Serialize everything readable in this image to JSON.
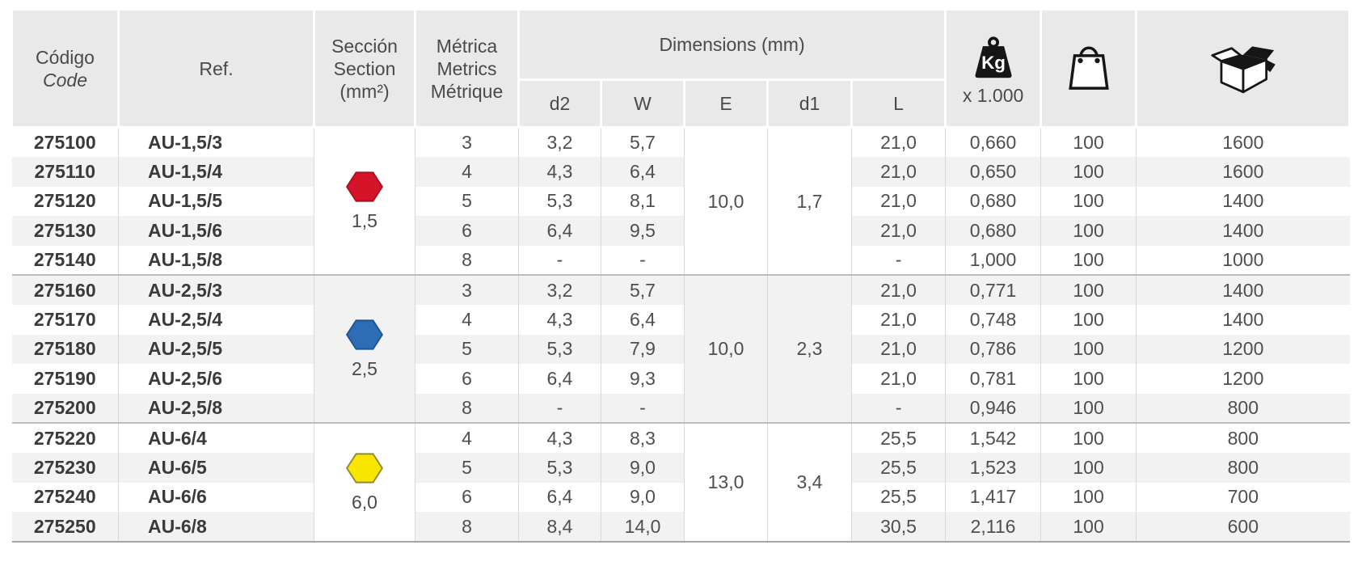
{
  "table": {
    "headers": {
      "codigo_line1": "Código",
      "codigo_line2": "Code",
      "ref": "Ref.",
      "seccion_line1": "Sección",
      "seccion_line2": "Section",
      "seccion_line3": "(mm²)",
      "metrica_line1": "Métrica",
      "metrica_line2": "Metrics",
      "metrica_line3": "Métrique",
      "dimensions": "Dimensions (mm)",
      "dim_d2": "d2",
      "dim_w": "W",
      "dim_e": "E",
      "dim_d1": "d1",
      "dim_l": "L",
      "kg_icon_label": "Kg",
      "kg_multiplier": "x 1.000",
      "icons": {
        "weight": "weight-kg-icon",
        "bag": "shopping-bag-icon",
        "box": "packaging-box-icon"
      }
    },
    "colors": {
      "header_bg": "#e9e9e9",
      "stripe_bg": "#f2f2f2",
      "divider": "#d9d9d9",
      "group_separator": "#bcbcbc",
      "red_hex": "#d5142a",
      "blue_hex": "#2c6db6",
      "yellow_hex": "#f8e500"
    },
    "groups": [
      {
        "section": "1,5",
        "hex_fill": "#d5142a",
        "hex_stroke": "#a81022",
        "E": "10,0",
        "d1": "1,7",
        "rows": [
          {
            "code": "275100",
            "ref": "AU-1,5/3",
            "metric": "3",
            "d2": "3,2",
            "W": "5,7",
            "L": "21,0",
            "kg": "0,660",
            "bag": "100",
            "box": "1600"
          },
          {
            "code": "275110",
            "ref": "AU-1,5/4",
            "metric": "4",
            "d2": "4,3",
            "W": "6,4",
            "L": "21,0",
            "kg": "0,650",
            "bag": "100",
            "box": "1600"
          },
          {
            "code": "275120",
            "ref": "AU-1,5/5",
            "metric": "5",
            "d2": "5,3",
            "W": "8,1",
            "L": "21,0",
            "kg": "0,680",
            "bag": "100",
            "box": "1400"
          },
          {
            "code": "275130",
            "ref": "AU-1,5/6",
            "metric": "6",
            "d2": "6,4",
            "W": "9,5",
            "L": "21,0",
            "kg": "0,680",
            "bag": "100",
            "box": "1400"
          },
          {
            "code": "275140",
            "ref": "AU-1,5/8",
            "metric": "8",
            "d2": "-",
            "W": "-",
            "L": "-",
            "kg": "1,000",
            "bag": "100",
            "box": "1000"
          }
        ]
      },
      {
        "section": "2,5",
        "hex_fill": "#2c6db6",
        "hex_stroke": "#1f5492",
        "E": "10,0",
        "d1": "2,3",
        "rows": [
          {
            "code": "275160",
            "ref": "AU-2,5/3",
            "metric": "3",
            "d2": "3,2",
            "W": "5,7",
            "L": "21,0",
            "kg": "0,771",
            "bag": "100",
            "box": "1400"
          },
          {
            "code": "275170",
            "ref": "AU-2,5/4",
            "metric": "4",
            "d2": "4,3",
            "W": "6,4",
            "L": "21,0",
            "kg": "0,748",
            "bag": "100",
            "box": "1400"
          },
          {
            "code": "275180",
            "ref": "AU-2,5/5",
            "metric": "5",
            "d2": "5,3",
            "W": "7,9",
            "L": "21,0",
            "kg": "0,786",
            "bag": "100",
            "box": "1200"
          },
          {
            "code": "275190",
            "ref": "AU-2,5/6",
            "metric": "6",
            "d2": "6,4",
            "W": "9,3",
            "L": "21,0",
            "kg": "0,781",
            "bag": "100",
            "box": "1200"
          },
          {
            "code": "275200",
            "ref": "AU-2,5/8",
            "metric": "8",
            "d2": "-",
            "W": "-",
            "L": "-",
            "kg": "0,946",
            "bag": "100",
            "box": "800"
          }
        ]
      },
      {
        "section": "6,0",
        "hex_fill": "#f8e500",
        "hex_stroke": "#8f8a33",
        "E": "13,0",
        "d1": "3,4",
        "rows": [
          {
            "code": "275220",
            "ref": "AU-6/4",
            "metric": "4",
            "d2": "4,3",
            "W": "8,3",
            "L": "25,5",
            "kg": "1,542",
            "bag": "100",
            "box": "800"
          },
          {
            "code": "275230",
            "ref": "AU-6/5",
            "metric": "5",
            "d2": "5,3",
            "W": "9,0",
            "L": "25,5",
            "kg": "1,523",
            "bag": "100",
            "box": "800"
          },
          {
            "code": "275240",
            "ref": "AU-6/6",
            "metric": "6",
            "d2": "6,4",
            "W": "9,0",
            "L": "25,5",
            "kg": "1,417",
            "bag": "100",
            "box": "700"
          },
          {
            "code": "275250",
            "ref": "AU-6/8",
            "metric": "8",
            "d2": "8,4",
            "W": "14,0",
            "L": "30,5",
            "kg": "2,116",
            "bag": "100",
            "box": "600"
          }
        ]
      }
    ]
  }
}
